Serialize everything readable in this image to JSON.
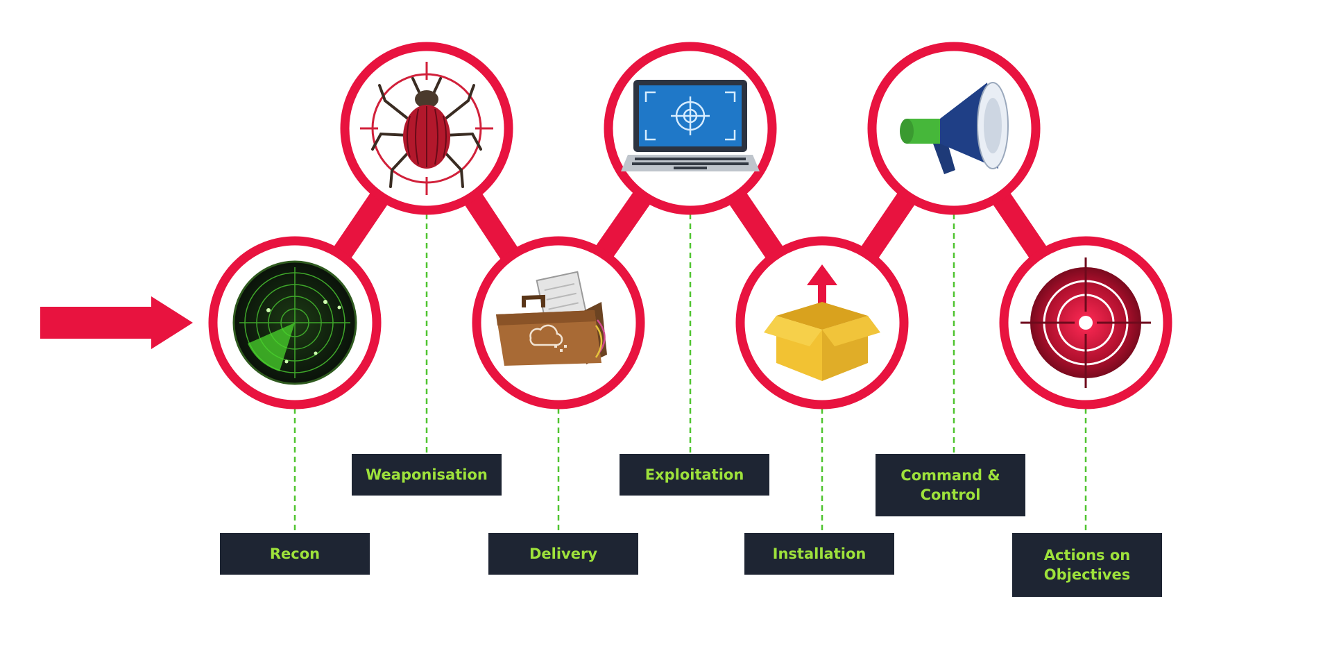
{
  "colors": {
    "accent": "#e8133f",
    "label_bg": "#1e2533",
    "label_text": "#9ee23b",
    "connector": "#4fc42f"
  },
  "stages": [
    {
      "label": "Recon",
      "icon": "radar-icon"
    },
    {
      "label": "Weaponisation",
      "icon": "bug-icon"
    },
    {
      "label": "Delivery",
      "icon": "briefcase-icon"
    },
    {
      "label": "Exploitation",
      "icon": "laptop-target-icon"
    },
    {
      "label": "Installation",
      "icon": "box-upload-icon"
    },
    {
      "label": "Command & Control",
      "icon": "megaphone-icon"
    },
    {
      "label": "Actions on Objectives",
      "icon": "target-icon"
    }
  ]
}
